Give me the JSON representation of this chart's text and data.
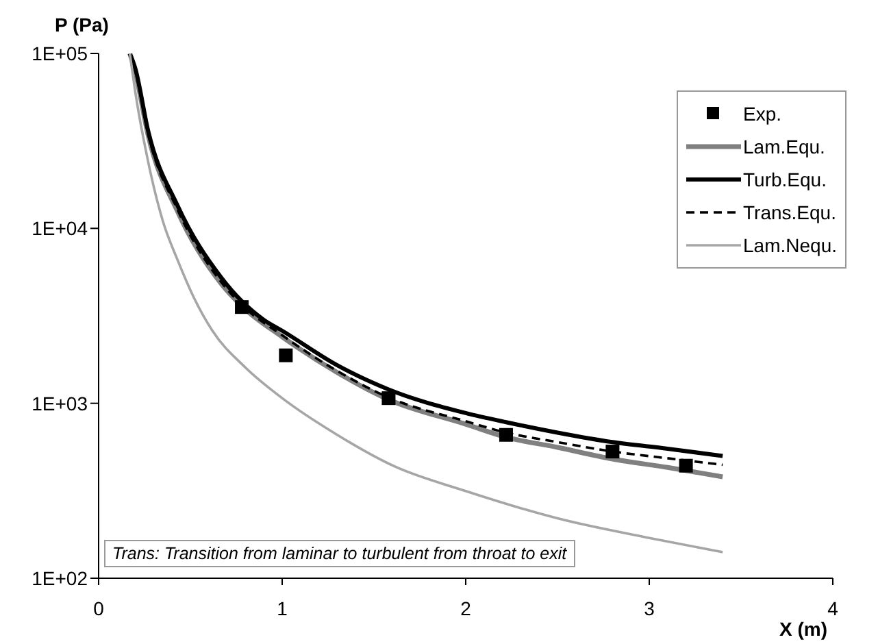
{
  "chart_data": {
    "type": "line",
    "xlabel": "X (m)",
    "ylabel": "P (Pa)",
    "xlim": [
      0,
      4
    ],
    "xticks": [
      0,
      1,
      2,
      3,
      4
    ],
    "ylim": [
      100,
      100000
    ],
    "yticks": [
      {
        "value": 100,
        "label": "1E+02"
      },
      {
        "value": 1000,
        "label": "1E+03"
      },
      {
        "value": 10000,
        "label": "1E+04"
      },
      {
        "value": 100000,
        "label": "1E+05"
      }
    ],
    "log": "y",
    "legend": "top right",
    "annotations": [
      "Trans: Transition from laminar to turbulent from throat to exit"
    ],
    "series": [
      {
        "name": "Exp.",
        "type": "scatter",
        "marker": "square",
        "color": "#000000",
        "x": [
          0.78,
          1.02,
          1.58,
          2.22,
          2.8,
          3.2
        ],
        "values": [
          3550,
          1880,
          1070,
          660,
          530,
          440
        ]
      },
      {
        "name": "Lam.Equ.",
        "color": "#808080",
        "line_style": "solid",
        "x": [
          0.17,
          0.2,
          0.27,
          0.43,
          0.67,
          0.78,
          1.0,
          1.3,
          1.58,
          2.0,
          2.22,
          2.5,
          2.8,
          3.1,
          3.4
        ],
        "values": [
          100000,
          78000,
          34000,
          12500,
          4800,
          3600,
          2400,
          1500,
          1050,
          760,
          640,
          560,
          480,
          430,
          380
        ]
      },
      {
        "name": "Turb.Equ.",
        "color": "#000000",
        "line_style": "solid",
        "x": [
          0.17,
          0.2,
          0.27,
          0.43,
          0.67,
          0.9,
          1.0,
          1.3,
          1.58,
          2.0,
          2.22,
          2.5,
          2.8,
          3.1,
          3.4
        ],
        "values": [
          100000,
          82000,
          36000,
          13500,
          5200,
          3000,
          2600,
          1650,
          1200,
          880,
          780,
          680,
          600,
          550,
          500
        ]
      },
      {
        "name": "Trans.Equ.",
        "color": "#000000",
        "line_style": "dashed",
        "x": [
          0.17,
          0.2,
          0.27,
          0.43,
          0.67,
          0.78,
          1.0,
          1.3,
          1.58,
          2.0,
          2.22,
          2.5,
          2.8,
          3.1,
          3.4
        ],
        "values": [
          100000,
          79000,
          34500,
          12800,
          4900,
          3650,
          2450,
          1530,
          1080,
          790,
          680,
          600,
          530,
          485,
          445
        ]
      },
      {
        "name": "Lam.Nequ.",
        "color": "#a6a6a6",
        "line_style": "solid",
        "x": [
          0.17,
          0.2,
          0.27,
          0.35,
          0.43,
          0.52,
          0.62,
          0.8,
          1.0,
          1.3,
          1.61,
          2.0,
          2.5,
          3.0,
          3.4
        ],
        "values": [
          100000,
          60000,
          24000,
          11000,
          6600,
          4000,
          2600,
          1600,
          1070,
          660,
          437,
          315,
          220,
          170,
          141
        ]
      }
    ]
  }
}
